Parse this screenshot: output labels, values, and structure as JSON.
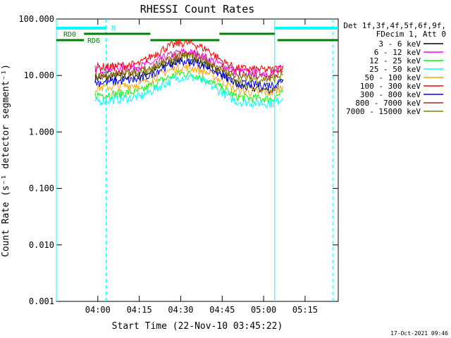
{
  "chart_data": {
    "type": "line",
    "title": "RHESSI Count Rates",
    "xlabel": "Start Time (22-Nov-10 03:45:22)",
    "ylabel": "Count Rate (s⁻¹ detector segment⁻¹)",
    "y_scale": "log",
    "ylim": [
      0.001,
      100
    ],
    "xlim": [
      "03:45",
      "05:27"
    ],
    "x_ticks": [
      "04:00",
      "04:15",
      "04:30",
      "04:45",
      "05:00",
      "05:15"
    ],
    "y_ticks": [
      "0.001",
      "0.010",
      "0.100",
      "1.000",
      "10.000",
      "100.000"
    ],
    "grid": false,
    "legend_position": "top-right",
    "legend_header": [
      "Det 1f,3f,4f,5f,6f,9f,",
      "FDecim 1, Att 0"
    ],
    "series": [
      {
        "name": "3 - 6 keV",
        "color": "#000000",
        "x": [
          "03:59",
          "04:05",
          "04:15",
          "04:20",
          "04:25",
          "04:30",
          "04:35",
          "04:40",
          "04:45",
          "04:50",
          "04:55",
          "05:03",
          "05:07"
        ],
        "values": [
          9,
          9.5,
          10,
          12,
          16,
          20,
          19,
          15,
          11,
          7,
          6,
          5.5,
          8
        ]
      },
      {
        "name": "6 - 12 keV",
        "color": "#ff00ff",
        "x": [
          "03:59",
          "04:05",
          "04:15",
          "04:20",
          "04:25",
          "04:30",
          "04:35",
          "04:40",
          "04:45",
          "04:50",
          "04:55",
          "05:03",
          "05:07"
        ],
        "values": [
          13,
          13.5,
          14.5,
          17,
          22,
          26,
          25,
          20,
          15,
          12,
          11.5,
          11,
          14
        ]
      },
      {
        "name": "12 - 25 keV",
        "color": "#00ff00",
        "x": [
          "03:59",
          "04:05",
          "04:15",
          "04:20",
          "04:25",
          "04:30",
          "04:35",
          "04:40",
          "04:45",
          "04:50",
          "04:55",
          "05:03",
          "05:07"
        ],
        "values": [
          4.5,
          4.7,
          5.2,
          7,
          9,
          11,
          10.5,
          8,
          6,
          4.2,
          4,
          3.9,
          5
        ]
      },
      {
        "name": "25 - 50 keV",
        "color": "#00ffff",
        "x": [
          "03:59",
          "04:05",
          "04:15",
          "04:20",
          "04:25",
          "04:30",
          "04:35",
          "04:40",
          "04:45",
          "04:50",
          "04:55",
          "05:03",
          "05:07"
        ],
        "values": [
          3.5,
          3.7,
          4.2,
          5.5,
          7.5,
          9.5,
          9,
          7,
          5,
          3.5,
          3.3,
          3.2,
          4
        ]
      },
      {
        "name": "50 - 100 keV",
        "color": "#ffa500",
        "x": [
          "03:59",
          "04:05",
          "04:15",
          "04:20",
          "04:25",
          "04:30",
          "04:35",
          "04:40",
          "04:45",
          "04:50",
          "04:55",
          "05:03",
          "05:07"
        ],
        "values": [
          6,
          6.3,
          7,
          9,
          12,
          14,
          13.5,
          11,
          8,
          5.5,
          5.2,
          5,
          6.5
        ]
      },
      {
        "name": "100 - 300 keV",
        "color": "#ff0000",
        "x": [
          "03:59",
          "04:05",
          "04:15",
          "04:20",
          "04:25",
          "04:30",
          "04:35",
          "04:40",
          "04:45",
          "04:50",
          "04:55",
          "05:03",
          "05:07"
        ],
        "values": [
          14,
          14.5,
          16,
          23,
          32,
          38,
          36,
          28,
          18,
          13.5,
          13,
          12.5,
          15
        ]
      },
      {
        "name": "300 - 800 keV",
        "color": "#0000ff",
        "x": [
          "03:59",
          "04:05",
          "04:15",
          "04:20",
          "04:25",
          "04:30",
          "04:35",
          "04:40",
          "04:45",
          "04:50",
          "04:55",
          "05:03",
          "05:07"
        ],
        "values": [
          7.5,
          7.8,
          8.5,
          11,
          15,
          18,
          17.5,
          14,
          10,
          7.2,
          7,
          6.8,
          8.5
        ]
      },
      {
        "name": "800 - 7000 keV",
        "color": "#a52a2a",
        "x": [
          "03:59",
          "04:05",
          "04:15",
          "04:20",
          "04:25",
          "04:30",
          "04:35",
          "04:40",
          "04:45",
          "04:50",
          "04:55",
          "05:03",
          "05:07"
        ],
        "values": [
          10.5,
          11,
          12,
          15,
          20,
          24,
          23,
          18,
          13,
          10,
          9.8,
          9.5,
          11.5
        ]
      },
      {
        "name": "7000 - 15000 keV",
        "color": "#808000",
        "x": [
          "03:59",
          "04:05",
          "04:15",
          "04:20",
          "04:25",
          "04:30",
          "04:35",
          "04:40",
          "04:45",
          "04:50",
          "04:55",
          "05:03",
          "05:07"
        ],
        "values": [
          9.5,
          10,
          11,
          13.5,
          18,
          22,
          21,
          16.5,
          12,
          9,
          8.8,
          8.5,
          10.5
        ]
      }
    ],
    "annotations": {
      "night_label": "N",
      "rd0_label": "RD0",
      "rd6_label": "RD6"
    },
    "footer_date": "17-Oct-2021 09:46"
  }
}
